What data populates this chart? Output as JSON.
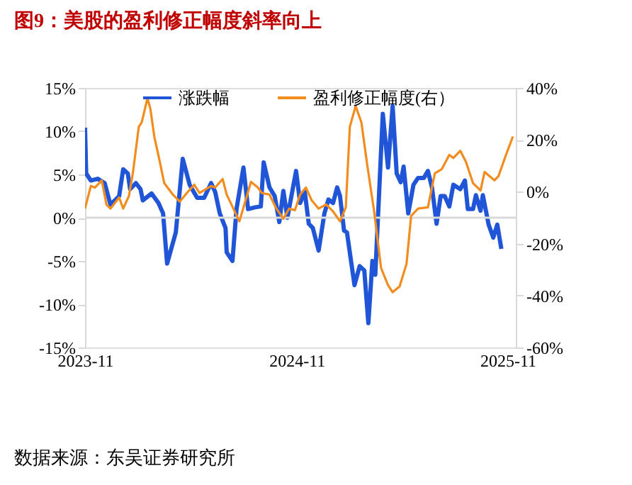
{
  "chart_data": {
    "type": "line",
    "title": "图9：美股的盈利修正幅度斜率向上",
    "annotations": [
      "数据来源：东吴证券研究所"
    ],
    "xlim": [
      "2023-11-01",
      "2025-11-15"
    ],
    "xticks": [
      {
        "value": "2023-11-01",
        "label": "2023-11"
      },
      {
        "value": "2024-11-01",
        "label": "2024-11"
      },
      {
        "value": "2025-11-01",
        "label": "2025-11"
      }
    ],
    "ylim": [
      -15,
      15
    ],
    "yticks": [
      {
        "value": -15,
        "label": "-15%"
      },
      {
        "value": -10,
        "label": "-10%"
      },
      {
        "value": -5,
        "label": "-5%"
      },
      {
        "value": 0,
        "label": "0%"
      },
      {
        "value": 5,
        "label": "5%"
      },
      {
        "value": 10,
        "label": "10%"
      },
      {
        "value": 15,
        "label": "15%"
      }
    ],
    "y2lim": [
      -60,
      40
    ],
    "y2ticks": [
      {
        "value": -60,
        "label": "-60%"
      },
      {
        "value": -40,
        "label": "-40%"
      },
      {
        "value": -20,
        "label": "-20%"
      },
      {
        "value": 0,
        "label": "0%"
      },
      {
        "value": 20,
        "label": "20%"
      },
      {
        "value": 40,
        "label": "40%"
      }
    ],
    "ref_lines": [
      {
        "axis": "y",
        "value": 0,
        "color": "#d9d9d9"
      }
    ],
    "legend": "top",
    "grid": false,
    "marker": "none",
    "line_style": "solid",
    "series": [
      {
        "name": "涨跌幅",
        "color": "#1f55d6",
        "x": [
          "2023-11-01",
          "2023-11-03",
          "2023-11-11",
          "2023-11-23",
          "2023-12-05",
          "2023-12-15",
          "2023-12-30",
          "2024-01-06",
          "2024-01-14",
          "2024-01-18",
          "2024-01-28",
          "2024-02-05",
          "2024-02-09",
          "2024-02-24",
          "2024-03-07",
          "2024-03-15",
          "2024-03-22",
          "2024-04-06",
          "2024-04-18",
          "2024-04-30",
          "2024-05-13",
          "2024-05-25",
          "2024-06-06",
          "2024-06-13",
          "2024-06-21",
          "2024-07-01",
          "2024-07-03",
          "2024-07-13",
          "2024-07-20",
          "2024-08-01",
          "2024-08-09",
          "2024-08-21",
          "2024-08-31",
          "2024-09-05",
          "2024-09-15",
          "2024-09-24",
          "2024-10-02",
          "2024-10-09",
          "2024-10-16",
          "2024-10-31",
          "2024-11-07",
          "2024-11-15",
          "2024-11-22",
          "2024-11-29",
          "2024-12-09",
          "2024-12-19",
          "2024-12-26",
          "2025-01-03",
          "2025-01-10",
          "2025-01-15",
          "2025-01-22",
          "2025-01-27",
          "2025-02-09",
          "2025-02-18",
          "2025-02-26",
          "2025-03-05",
          "2025-03-12",
          "2025-03-17",
          "2025-03-30",
          "2025-04-08",
          "2025-04-16",
          "2025-04-23",
          "2025-04-30",
          "2025-05-05",
          "2025-05-13",
          "2025-05-22",
          "2025-05-30",
          "2025-06-09",
          "2025-06-16",
          "2025-06-23",
          "2025-07-01",
          "2025-07-08",
          "2025-07-15",
          "2025-07-23",
          "2025-07-30",
          "2025-08-11",
          "2025-08-19",
          "2025-08-24",
          "2025-09-02",
          "2025-09-07",
          "2025-09-15",
          "2025-09-19",
          "2025-09-29",
          "2025-10-07",
          "2025-10-14",
          "2025-10-21"
        ],
        "values": [
          10.4,
          5.1,
          4.3,
          4.5,
          4,
          1.5,
          2.5,
          5.6,
          5.1,
          3.3,
          4,
          3.3,
          2,
          2.8,
          1.7,
          0.5,
          -5.3,
          -1.7,
          6.8,
          3.8,
          2.3,
          2.3,
          4,
          3,
          0.5,
          -1.2,
          -4,
          -5,
          1,
          5.8,
          1,
          1.2,
          1.3,
          6.4,
          3.5,
          2.5,
          -0.5,
          3.1,
          0,
          5.4,
          1.7,
          3,
          -0.7,
          -1.2,
          -3.8,
          0.5,
          2.1,
          1.7,
          3.5,
          2.5,
          -1.5,
          -1.7,
          -7.8,
          -5.6,
          -6.1,
          -12.2,
          -5,
          -6.6,
          12,
          5.8,
          12.9,
          5.1,
          4.1,
          5.9,
          0.5,
          3.8,
          4.6,
          4.6,
          5.4,
          3.5,
          -0.7,
          2.5,
          2.5,
          1.3,
          3.8,
          3.3,
          4.3,
          1,
          1,
          2.6,
          0.8,
          2.6,
          -0.8,
          -2.3,
          -0.8,
          -3.6
        ]
      },
      {
        "name": "盈利修正幅度(右）",
        "color": "#f28c1e",
        "axis": "y2",
        "x": [
          "2023-11-01",
          "2023-11-11",
          "2023-11-18",
          "2023-11-30",
          "2023-12-08",
          "2023-12-15",
          "2023-12-30",
          "2024-01-06",
          "2024-01-16",
          "2024-01-23",
          "2024-02-02",
          "2024-02-07",
          "2024-02-17",
          "2024-02-22",
          "2024-02-29",
          "2024-03-07",
          "2024-03-17",
          "2024-04-01",
          "2024-04-13",
          "2024-04-25",
          "2024-05-08",
          "2024-05-17",
          "2024-06-06",
          "2024-06-13",
          "2024-06-26",
          "2024-07-03",
          "2024-07-25",
          "2024-08-14",
          "2024-08-26",
          "2024-09-02",
          "2024-09-15",
          "2024-09-27",
          "2024-10-09",
          "2024-10-19",
          "2024-10-29",
          "2024-11-07",
          "2024-11-17",
          "2024-11-27",
          "2024-12-09",
          "2024-12-22",
          "2025-01-03",
          "2025-01-15",
          "2025-01-25",
          "2025-02-01",
          "2025-02-11",
          "2025-02-21",
          "2025-03-03",
          "2025-03-15",
          "2025-03-27",
          "2025-04-08",
          "2025-04-16",
          "2025-04-28",
          "2025-05-10",
          "2025-05-18",
          "2025-05-30",
          "2025-06-16",
          "2025-06-28",
          "2025-07-10",
          "2025-07-23",
          "2025-07-30",
          "2025-08-11",
          "2025-08-21",
          "2025-09-02",
          "2025-09-15",
          "2025-09-22",
          "2025-10-09",
          "2025-10-16",
          "2025-10-29",
          "2025-11-10"
        ],
        "values": [
          -6.5,
          2.2,
          1.6,
          4.4,
          -4.9,
          -6.5,
          -2.2,
          -6.5,
          -1.6,
          7.6,
          25,
          26.7,
          36,
          32,
          21,
          14,
          3.3,
          -1.1,
          -3.8,
          -0.5,
          2.7,
          -0.5,
          2.2,
          1.6,
          4.9,
          -1.1,
          -11.4,
          3.8,
          1.6,
          -0.5,
          -1.1,
          -6.5,
          -10.4,
          -6.5,
          -7.1,
          -1.1,
          1.6,
          -3.3,
          -6.5,
          -4.9,
          -7.6,
          -11.4,
          -6,
          25,
          33,
          26.7,
          10.4,
          -7.6,
          -29.4,
          -36,
          -38.7,
          -36.5,
          -27.8,
          -9.3,
          -6.5,
          -6,
          7.1,
          8.7,
          14.2,
          13,
          15.8,
          11.4,
          3.3,
          0.5,
          7.6,
          4.4,
          6,
          14.2,
          21.3
        ]
      }
    ]
  }
}
